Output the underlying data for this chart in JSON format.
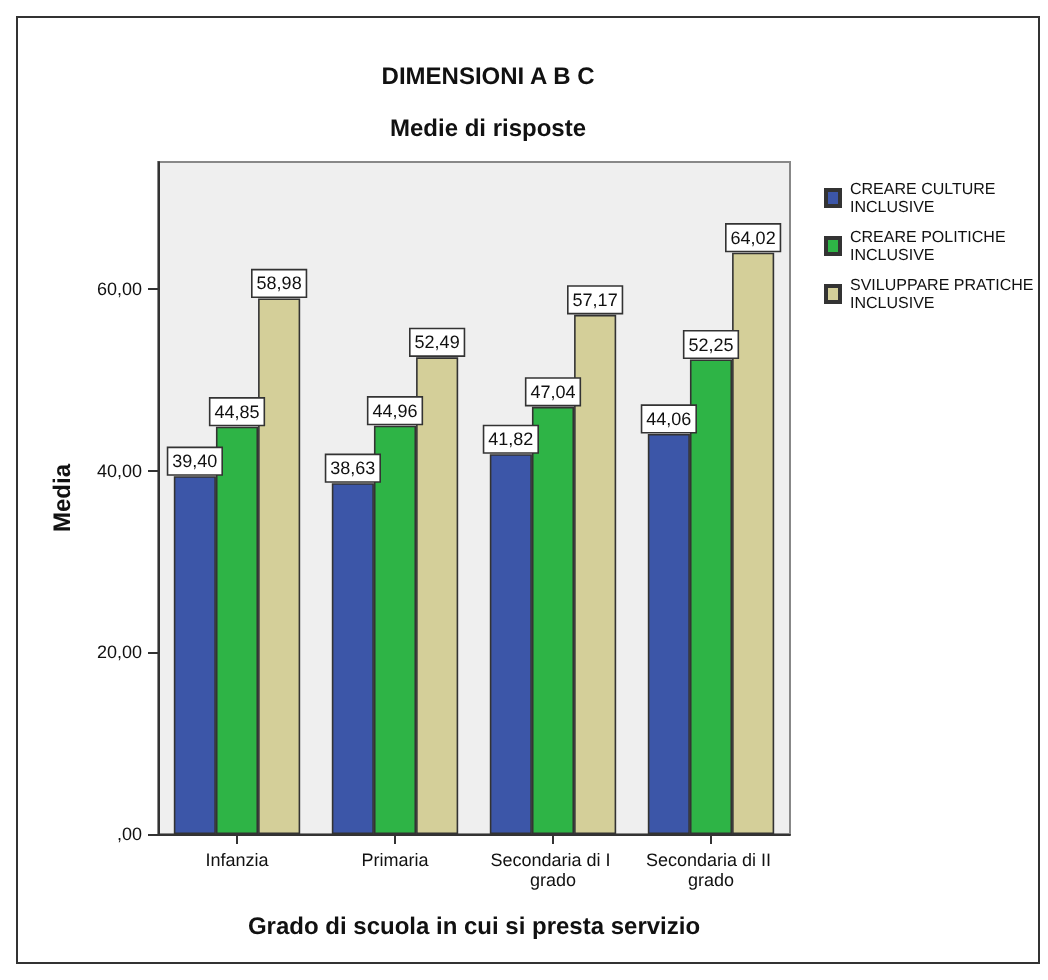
{
  "chart_data": {
    "type": "bar",
    "title": "DIMENSIONI A B C",
    "subtitle": "Medie di risposte",
    "xlabel": "Grado di scuola in cui si presta servizio",
    "ylabel": "Media",
    "categories": [
      "Infanzia",
      "Primaria",
      "Secondaria di I grado",
      "Secondaria di II grado"
    ],
    "series": [
      {
        "name": "CREARE CULTURE INCLUSIVE",
        "color": "#3c56a8",
        "values": [
          39.4,
          38.63,
          41.82,
          44.06
        ],
        "value_labels": [
          "39,40",
          "38,63",
          "41,82",
          "44,06"
        ]
      },
      {
        "name": "CREARE POLITICHE INCLUSIVE",
        "color": "#2eb446",
        "values": [
          44.85,
          44.96,
          47.04,
          52.25
        ],
        "value_labels": [
          "44,85",
          "44,96",
          "47,04",
          "52,25"
        ]
      },
      {
        "name": "SVILUPPARE PRATICHE INCLUSIVE",
        "color": "#d4cf99",
        "values": [
          58.98,
          52.49,
          57.17,
          64.02
        ],
        "value_labels": [
          "58,98",
          "52,49",
          "57,17",
          "64,02"
        ]
      }
    ],
    "ylim": [
      0,
      74
    ],
    "yticks": [
      {
        "value": 0,
        "label": ",00"
      },
      {
        "value": 20,
        "label": "20,00"
      },
      {
        "value": 40,
        "label": "40,00"
      },
      {
        "value": 60,
        "label": "60,00"
      }
    ],
    "grid": false,
    "legend": "top right"
  }
}
